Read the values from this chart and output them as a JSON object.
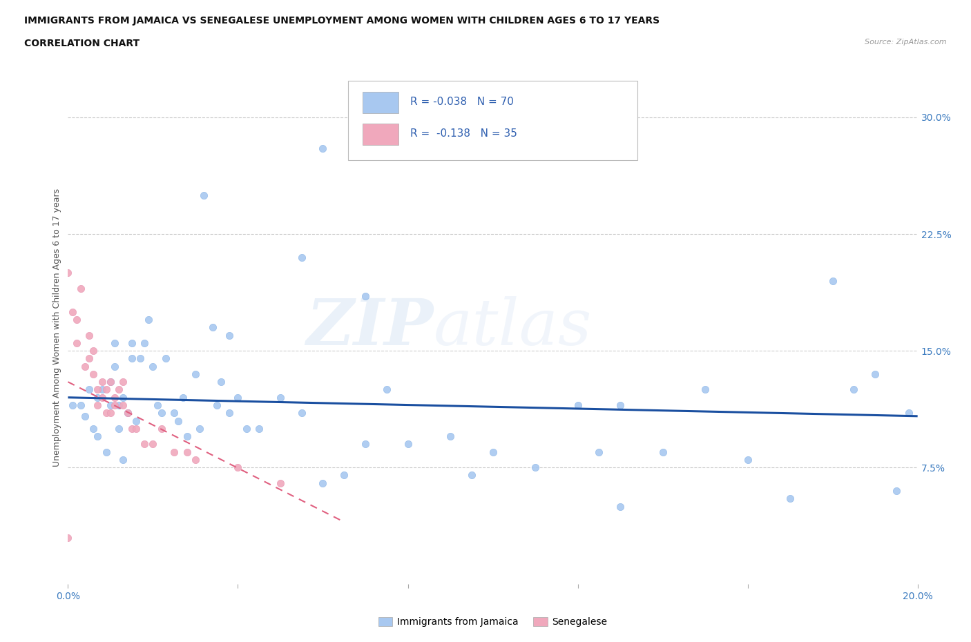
{
  "title_line1": "IMMIGRANTS FROM JAMAICA VS SENEGALESE UNEMPLOYMENT AMONG WOMEN WITH CHILDREN AGES 6 TO 17 YEARS",
  "title_line2": "CORRELATION CHART",
  "source_text": "Source: ZipAtlas.com",
  "ylabel": "Unemployment Among Women with Children Ages 6 to 17 years",
  "xlim": [
    0.0,
    0.2
  ],
  "ylim": [
    0.0,
    0.33
  ],
  "xticks": [
    0.0,
    0.04,
    0.08,
    0.12,
    0.16,
    0.2
  ],
  "yticks": [
    0.0,
    0.075,
    0.15,
    0.225,
    0.3
  ],
  "yticklabels": [
    "",
    "7.5%",
    "15.0%",
    "22.5%",
    "30.0%"
  ],
  "legend1_label": "Immigrants from Jamaica",
  "legend2_label": "Senegalese",
  "r1": -0.038,
  "n1": 70,
  "r2": -0.138,
  "n2": 35,
  "color1": "#a8c8f0",
  "color2": "#f0a8bc",
  "trendline1_color": "#1a4fa0",
  "trendline2_color": "#e06080",
  "scatter1_x": [
    0.001,
    0.003,
    0.004,
    0.005,
    0.006,
    0.007,
    0.007,
    0.008,
    0.009,
    0.01,
    0.01,
    0.011,
    0.011,
    0.012,
    0.012,
    0.013,
    0.013,
    0.014,
    0.015,
    0.015,
    0.016,
    0.017,
    0.018,
    0.019,
    0.02,
    0.021,
    0.022,
    0.023,
    0.025,
    0.026,
    0.027,
    0.028,
    0.03,
    0.031,
    0.032,
    0.034,
    0.035,
    0.036,
    0.038,
    0.04,
    0.042,
    0.045,
    0.05,
    0.055,
    0.06,
    0.065,
    0.07,
    0.075,
    0.08,
    0.09,
    0.095,
    0.1,
    0.11,
    0.12,
    0.125,
    0.13,
    0.14,
    0.15,
    0.16,
    0.17,
    0.18,
    0.185,
    0.19,
    0.195,
    0.198,
    0.06,
    0.07,
    0.055,
    0.038,
    0.13
  ],
  "scatter1_y": [
    0.115,
    0.115,
    0.108,
    0.125,
    0.1,
    0.12,
    0.095,
    0.125,
    0.085,
    0.115,
    0.13,
    0.14,
    0.155,
    0.1,
    0.115,
    0.08,
    0.12,
    0.11,
    0.145,
    0.155,
    0.105,
    0.145,
    0.155,
    0.17,
    0.14,
    0.115,
    0.11,
    0.145,
    0.11,
    0.105,
    0.12,
    0.095,
    0.135,
    0.1,
    0.25,
    0.165,
    0.115,
    0.13,
    0.11,
    0.12,
    0.1,
    0.1,
    0.12,
    0.11,
    0.065,
    0.07,
    0.09,
    0.125,
    0.09,
    0.095,
    0.07,
    0.085,
    0.075,
    0.115,
    0.085,
    0.115,
    0.085,
    0.125,
    0.08,
    0.055,
    0.195,
    0.125,
    0.135,
    0.06,
    0.11,
    0.28,
    0.185,
    0.21,
    0.16,
    0.05
  ],
  "scatter2_x": [
    0.0,
    0.001,
    0.002,
    0.002,
    0.003,
    0.004,
    0.005,
    0.005,
    0.006,
    0.006,
    0.007,
    0.007,
    0.008,
    0.008,
    0.009,
    0.009,
    0.01,
    0.01,
    0.011,
    0.011,
    0.012,
    0.013,
    0.013,
    0.014,
    0.015,
    0.016,
    0.018,
    0.02,
    0.022,
    0.025,
    0.028,
    0.03,
    0.04,
    0.05,
    0.0
  ],
  "scatter2_y": [
    0.2,
    0.175,
    0.17,
    0.155,
    0.19,
    0.14,
    0.145,
    0.16,
    0.15,
    0.135,
    0.125,
    0.115,
    0.13,
    0.12,
    0.125,
    0.11,
    0.13,
    0.11,
    0.12,
    0.115,
    0.125,
    0.115,
    0.13,
    0.11,
    0.1,
    0.1,
    0.09,
    0.09,
    0.1,
    0.085,
    0.085,
    0.08,
    0.075,
    0.065,
    0.03
  ],
  "trendline1_x0": 0.0,
  "trendline1_x1": 0.2,
  "trendline1_y0": 0.12,
  "trendline1_y1": 0.108,
  "trendline2_x0": 0.0,
  "trendline2_x1": 0.065,
  "trendline2_y0": 0.13,
  "trendline2_y1": 0.04
}
